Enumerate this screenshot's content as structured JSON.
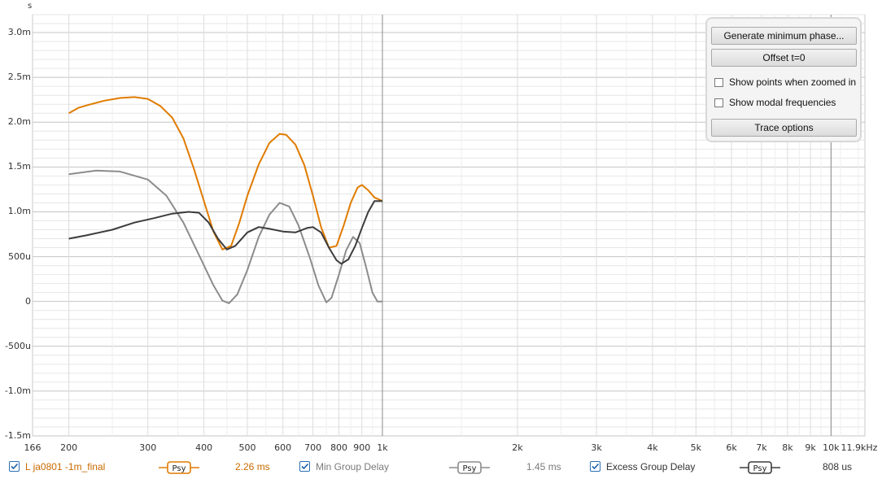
{
  "chart_data": {
    "type": "line",
    "x_scale": "log",
    "y_unit": "s",
    "xlim": [
      166,
      11900
    ],
    "ylim": [
      -0.0015,
      0.0032
    ],
    "x_ticks": [
      {
        "v": 166,
        "label": "166"
      },
      {
        "v": 200,
        "label": "200"
      },
      {
        "v": 300,
        "label": "300"
      },
      {
        "v": 400,
        "label": "400"
      },
      {
        "v": 500,
        "label": "500"
      },
      {
        "v": 600,
        "label": "600"
      },
      {
        "v": 700,
        "label": "700"
      },
      {
        "v": 800,
        "label": "800"
      },
      {
        "v": 900,
        "label": "900"
      },
      {
        "v": 1000,
        "label": "1k"
      },
      {
        "v": 2000,
        "label": "2k"
      },
      {
        "v": 3000,
        "label": "3k"
      },
      {
        "v": 4000,
        "label": "4k"
      },
      {
        "v": 5000,
        "label": "5k"
      },
      {
        "v": 6000,
        "label": "6k"
      },
      {
        "v": 7000,
        "label": "7k"
      },
      {
        "v": 8000,
        "label": "8k"
      },
      {
        "v": 9000,
        "label": "9k"
      },
      {
        "v": 10000,
        "label": "10k"
      },
      {
        "v": 11900,
        "label": "11.9kHz"
      }
    ],
    "y_ticks": [
      {
        "v": 0.003,
        "label": "3.0m"
      },
      {
        "v": 0.0025,
        "label": "2.5m"
      },
      {
        "v": 0.002,
        "label": "2.0m"
      },
      {
        "v": 0.0015,
        "label": "1.5m"
      },
      {
        "v": 0.001,
        "label": "1.0m"
      },
      {
        "v": 0.0005,
        "label": "500u"
      },
      {
        "v": 0,
        "label": "0"
      },
      {
        "v": -0.0005,
        "label": "-500u"
      },
      {
        "v": -0.001,
        "label": "-1.0m"
      },
      {
        "v": -0.0015,
        "label": "-1.5m"
      }
    ],
    "grid": true,
    "series": [
      {
        "name": "L ja0801 -1m_final",
        "color": "#e07b00",
        "points": [
          [
            200,
            0.0021
          ],
          [
            210,
            0.00216
          ],
          [
            220,
            0.00219
          ],
          [
            240,
            0.00224
          ],
          [
            260,
            0.00227
          ],
          [
            280,
            0.00228
          ],
          [
            300,
            0.00226
          ],
          [
            320,
            0.00218
          ],
          [
            340,
            0.00205
          ],
          [
            360,
            0.00182
          ],
          [
            380,
            0.00148
          ],
          [
            400,
            0.00112
          ],
          [
            420,
            0.00078
          ],
          [
            440,
            0.00058
          ],
          [
            460,
            0.00062
          ],
          [
            480,
            0.00088
          ],
          [
            500,
            0.00118
          ],
          [
            530,
            0.00153
          ],
          [
            560,
            0.00177
          ],
          [
            590,
            0.00187
          ],
          [
            610,
            0.00186
          ],
          [
            640,
            0.00175
          ],
          [
            670,
            0.00152
          ],
          [
            700,
            0.00118
          ],
          [
            730,
            0.00083
          ],
          [
            760,
            0.0006
          ],
          [
            790,
            0.00062
          ],
          [
            820,
            0.00085
          ],
          [
            850,
            0.0011
          ],
          [
            880,
            0.00127
          ],
          [
            900,
            0.0013
          ],
          [
            930,
            0.00124
          ],
          [
            960,
            0.00116
          ],
          [
            1000,
            0.00112
          ]
        ]
      },
      {
        "name": "Min Group Delay",
        "color": "#8c8c8c",
        "points": [
          [
            200,
            0.00142
          ],
          [
            230,
            0.00146
          ],
          [
            260,
            0.00145
          ],
          [
            300,
            0.00136
          ],
          [
            330,
            0.00118
          ],
          [
            360,
            0.00088
          ],
          [
            390,
            0.00052
          ],
          [
            420,
            0.00018
          ],
          [
            440,
            1e-05
          ],
          [
            455,
            -2e-05
          ],
          [
            475,
            8e-05
          ],
          [
            500,
            0.00035
          ],
          [
            530,
            0.00072
          ],
          [
            560,
            0.00097
          ],
          [
            590,
            0.0011
          ],
          [
            620,
            0.00106
          ],
          [
            650,
            0.00085
          ],
          [
            690,
            0.00048
          ],
          [
            720,
            0.00018
          ],
          [
            750,
            -1e-05
          ],
          [
            770,
            4e-05
          ],
          [
            800,
            0.0003
          ],
          [
            830,
            0.00057
          ],
          [
            860,
            0.00072
          ],
          [
            890,
            0.00065
          ],
          [
            920,
            0.00038
          ],
          [
            950,
            0.0001
          ],
          [
            975,
            0.0
          ],
          [
            1000,
            0.0
          ]
        ]
      },
      {
        "name": "Excess Group Delay",
        "color": "#3c3c3c",
        "points": [
          [
            200,
            0.0007
          ],
          [
            220,
            0.00074
          ],
          [
            250,
            0.0008
          ],
          [
            280,
            0.00088
          ],
          [
            310,
            0.00093
          ],
          [
            340,
            0.00098
          ],
          [
            370,
            0.001
          ],
          [
            390,
            0.00099
          ],
          [
            410,
            0.00088
          ],
          [
            430,
            0.0007
          ],
          [
            450,
            0.00058
          ],
          [
            470,
            0.00062
          ],
          [
            500,
            0.00077
          ],
          [
            530,
            0.00083
          ],
          [
            560,
            0.00081
          ],
          [
            600,
            0.00078
          ],
          [
            640,
            0.00077
          ],
          [
            680,
            0.00082
          ],
          [
            700,
            0.00083
          ],
          [
            730,
            0.00077
          ],
          [
            760,
            0.0006
          ],
          [
            790,
            0.00046
          ],
          [
            810,
            0.00042
          ],
          [
            840,
            0.00047
          ],
          [
            870,
            0.00062
          ],
          [
            900,
            0.00082
          ],
          [
            930,
            0.001
          ],
          [
            960,
            0.00112
          ],
          [
            1000,
            0.00112
          ]
        ]
      }
    ]
  },
  "panel": {
    "generate_label": "Generate minimum phase...",
    "offset_label": "Offset t=0",
    "show_points_label": "Show points when zoomed in",
    "show_modal_label": "Show modal frequencies",
    "trace_options_label": "Trace options"
  },
  "legend": [
    {
      "name": "L ja0801 -1m_final",
      "value": "2.26 ms",
      "color": "#e07b00",
      "text_color": "#c96a00",
      "psy": "Psy"
    },
    {
      "name": "Min Group Delay",
      "value": "1.45 ms",
      "color": "#8c8c8c",
      "text_color": "#7a7a7a",
      "psy": "Psy"
    },
    {
      "name": "Excess Group Delay",
      "value": "808 us",
      "color": "#3c3c3c",
      "text_color": "#333333",
      "psy": "Psy"
    }
  ]
}
